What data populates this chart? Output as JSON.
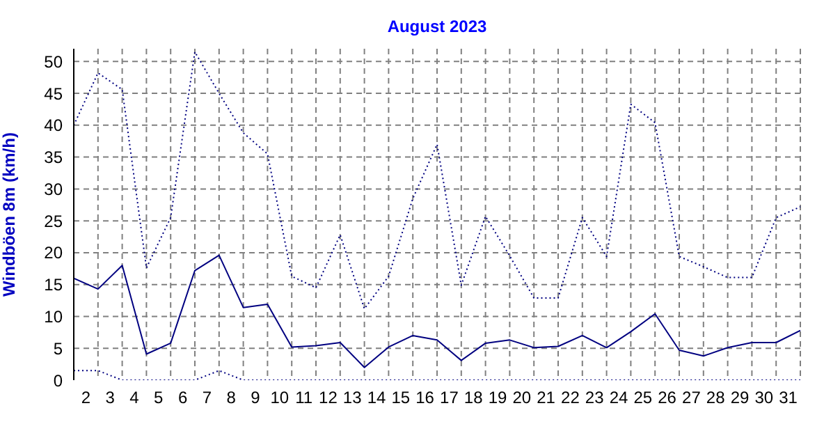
{
  "chart_data": {
    "type": "line",
    "title": "August 2023",
    "ylabel": "Windböen 8m  (km/h)",
    "x": [
      1.5,
      2.5,
      3.5,
      4.5,
      5.5,
      6.5,
      7.5,
      8.5,
      9.5,
      10.5,
      11.5,
      12.5,
      13.5,
      14.5,
      15.5,
      16.5,
      17.5,
      18.5,
      19.5,
      20.5,
      21.5,
      22.5,
      23.5,
      24.5,
      25.5,
      26.5,
      27.5,
      28.5,
      29.5,
      30.5,
      31.5
    ],
    "series": [
      {
        "color": "#000080",
        "line_style": "dotted",
        "values": [
          40,
          48.2,
          45.6,
          17.6,
          25.5,
          51.5,
          45,
          38.8,
          35.5,
          16.3,
          14.5,
          22.8,
          11.2,
          16.3,
          28.5,
          37,
          14.9,
          25.7,
          19.5,
          12.9,
          12.9,
          25.5,
          19.4,
          43.3,
          40.4,
          19.4,
          17.8,
          16.1,
          16.1,
          25.5,
          27.2
        ]
      },
      {
        "color": "#000080",
        "line_style": "solid",
        "values": [
          16,
          14.3,
          18,
          4.1,
          5.8,
          17.2,
          19.6,
          11.4,
          11.9,
          5.2,
          5.4,
          5.9,
          2,
          5.2,
          7,
          6.3,
          3.1,
          5.8,
          6.3,
          5.1,
          5.3,
          7,
          5.1,
          7.6,
          10.4,
          4.7,
          3.8,
          5.1,
          5.9,
          5.9,
          7.8
        ]
      },
      {
        "color": "#000080",
        "line_style": "dotted",
        "values": [
          1.5,
          1.5,
          0,
          0,
          0,
          0,
          1.5,
          0,
          0,
          0,
          0,
          0,
          0,
          0,
          0,
          0,
          0,
          0,
          0,
          0,
          0,
          0,
          0,
          0,
          0,
          0,
          0,
          0,
          0,
          0,
          0
        ]
      }
    ],
    "xlim": [
      1.5,
      31.5
    ],
    "xticks": [
      2,
      3,
      4,
      5,
      6,
      7,
      8,
      9,
      10,
      11,
      12,
      13,
      14,
      15,
      16,
      17,
      18,
      19,
      20,
      21,
      22,
      23,
      24,
      25,
      26,
      27,
      28,
      29,
      30,
      31,
      {
        "value": 2.5,
        "label": null
      },
      {
        "value": 3.5,
        "label": null
      },
      {
        "value": 4.5,
        "label": null
      },
      {
        "value": 5.5,
        "label": null
      },
      {
        "value": 6.5,
        "label": null
      },
      {
        "value": 7.5,
        "label": null
      },
      {
        "value": 8.5,
        "label": null
      },
      {
        "value": 9.5,
        "label": null
      },
      {
        "value": 10.5,
        "label": null
      },
      {
        "value": 11.5,
        "label": null
      },
      {
        "value": 12.5,
        "label": null
      },
      {
        "value": 13.5,
        "label": null
      },
      {
        "value": 14.5,
        "label": null
      },
      {
        "value": 15.5,
        "label": null
      },
      {
        "value": 16.5,
        "label": null
      },
      {
        "value": 17.5,
        "label": null
      },
      {
        "value": 18.5,
        "label": null
      },
      {
        "value": 19.5,
        "label": null
      },
      {
        "value": 20.5,
        "label": null
      },
      {
        "value": 21.5,
        "label": null
      },
      {
        "value": 22.5,
        "label": null
      },
      {
        "value": 23.5,
        "label": null
      },
      {
        "value": 24.5,
        "label": null
      },
      {
        "value": 25.5,
        "label": null
      },
      {
        "value": 26.5,
        "label": null
      },
      {
        "value": 27.5,
        "label": null
      },
      {
        "value": 28.5,
        "label": null
      },
      {
        "value": 29.5,
        "label": null
      },
      {
        "value": 30.5,
        "label": null
      },
      {
        "value": 31.5,
        "label": null
      }
    ],
    "ylim": [
      0,
      52
    ],
    "yticks": [
      0,
      5,
      10,
      15,
      20,
      25,
      30,
      35,
      40,
      45,
      50
    ],
    "grid": true,
    "marker": "none"
  }
}
